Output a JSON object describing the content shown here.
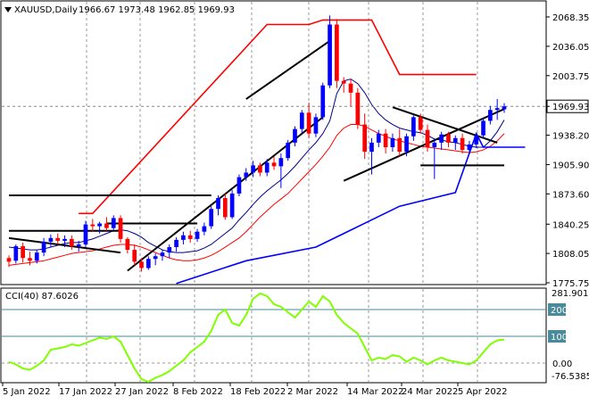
{
  "header": {
    "symbol_label": "XAUUSD,Daily",
    "ohlc": "1966.67 1973.48 1962.85 1969.93"
  },
  "indicator": {
    "label": "CCI(40) 87.6026",
    "scale_max": "281.9018",
    "scale_min": "-76.5385",
    "levels": [
      "200",
      "100",
      "0.00"
    ],
    "level_values": [
      200,
      100,
      0
    ]
  },
  "price_axis": {
    "ticks": [
      "2068.35",
      "2036.05",
      "2003.75",
      "1969.93",
      "1938.20",
      "1905.90",
      "1873.60",
      "1840.25",
      "1808.05",
      "1775.75"
    ],
    "tick_values": [
      2068.35,
      2036.05,
      2003.75,
      1969.93,
      1938.2,
      1905.9,
      1873.6,
      1840.25,
      1808.05,
      1775.75
    ],
    "current_price": "1969.93",
    "current_value": 1969.93
  },
  "time_axis": {
    "labels": [
      "5 Jan 2022",
      "17 Jan 2022",
      "27 Jan 2022",
      "8 Feb 2022",
      "18 Feb 2022",
      "2 Mar 2022",
      "14 Mar 2022",
      "24 Mar 2022",
      "5 Apr 2022"
    ]
  },
  "colors": {
    "up_candle": "#0000ff",
    "down_candle": "#ff0000",
    "ma_short": "#00008b",
    "ma_long": "#ff0000",
    "support": "#0000ff",
    "resistance": "#ff0000",
    "cci": "#7fff00",
    "trend_lines": "#000000",
    "level_lines": "#4a8a9a"
  },
  "chart_data": {
    "type": "candlestick",
    "ohlc": [
      [
        1803,
        1806,
        1793,
        1799
      ],
      [
        1800,
        1818,
        1797,
        1816
      ],
      [
        1816,
        1820,
        1798,
        1803
      ],
      [
        1803,
        1810,
        1795,
        1800
      ],
      [
        1800,
        1812,
        1797,
        1809
      ],
      [
        1809,
        1825,
        1805,
        1821
      ],
      [
        1821,
        1829,
        1815,
        1825
      ],
      [
        1825,
        1830,
        1818,
        1822
      ],
      [
        1822,
        1828,
        1815,
        1824
      ],
      [
        1824,
        1828,
        1812,
        1816
      ],
      [
        1816,
        1822,
        1810,
        1818
      ],
      [
        1818,
        1844,
        1815,
        1840
      ],
      [
        1840,
        1846,
        1832,
        1838
      ],
      [
        1838,
        1843,
        1830,
        1841
      ],
      [
        1841,
        1848,
        1833,
        1836
      ],
      [
        1836,
        1850,
        1834,
        1847
      ],
      [
        1847,
        1850,
        1820,
        1824
      ],
      [
        1824,
        1826,
        1808,
        1812
      ],
      [
        1812,
        1818,
        1795,
        1799
      ],
      [
        1799,
        1803,
        1788,
        1792
      ],
      [
        1792,
        1805,
        1790,
        1802
      ],
      [
        1802,
        1808,
        1795,
        1805
      ],
      [
        1805,
        1812,
        1800,
        1809
      ],
      [
        1809,
        1818,
        1803,
        1815
      ],
      [
        1815,
        1826,
        1810,
        1823
      ],
      [
        1823,
        1832,
        1818,
        1828
      ],
      [
        1828,
        1833,
        1820,
        1824
      ],
      [
        1824,
        1835,
        1821,
        1832
      ],
      [
        1832,
        1842,
        1828,
        1838
      ],
      [
        1838,
        1860,
        1835,
        1857
      ],
      [
        1857,
        1872,
        1850,
        1869
      ],
      [
        1869,
        1874,
        1845,
        1848
      ],
      [
        1848,
        1878,
        1846,
        1874
      ],
      [
        1874,
        1895,
        1871,
        1892
      ],
      [
        1892,
        1902,
        1888,
        1897
      ],
      [
        1897,
        1910,
        1892,
        1905
      ],
      [
        1905,
        1908,
        1893,
        1897
      ],
      [
        1897,
        1912,
        1893,
        1908
      ],
      [
        1908,
        1915,
        1900,
        1904
      ],
      [
        1904,
        1918,
        1880,
        1913
      ],
      [
        1913,
        1933,
        1910,
        1930
      ],
      [
        1930,
        1948,
        1926,
        1945
      ],
      [
        1945,
        1966,
        1940,
        1963
      ],
      [
        1963,
        1974,
        1935,
        1940
      ],
      [
        1940,
        1962,
        1936,
        1958
      ],
      [
        1958,
        1996,
        1955,
        1993
      ],
      [
        1993,
        2070,
        1990,
        2060
      ],
      [
        2060,
        2066,
        1990,
        1998
      ],
      [
        1998,
        2002,
        1985,
        1995
      ],
      [
        1995,
        2000,
        1970,
        1985
      ],
      [
        1985,
        1990,
        1945,
        1950
      ],
      [
        1950,
        1962,
        1912,
        1920
      ],
      [
        1920,
        1935,
        1895,
        1930
      ],
      [
        1930,
        1944,
        1925,
        1940
      ],
      [
        1940,
        1945,
        1918,
        1925
      ],
      [
        1925,
        1940,
        1920,
        1935
      ],
      [
        1935,
        1945,
        1915,
        1920
      ],
      [
        1920,
        1940,
        1915,
        1937
      ],
      [
        1937,
        1960,
        1932,
        1958
      ],
      [
        1958,
        1962,
        1940,
        1944
      ],
      [
        1944,
        1950,
        1920,
        1925
      ],
      [
        1925,
        1934,
        1890,
        1930
      ],
      [
        1930,
        1942,
        1922,
        1939
      ],
      [
        1939,
        1942,
        1925,
        1930
      ],
      [
        1930,
        1938,
        1922,
        1935
      ],
      [
        1935,
        1940,
        1918,
        1922
      ],
      [
        1922,
        1932,
        1918,
        1928
      ],
      [
        1928,
        1940,
        1924,
        1938
      ],
      [
        1938,
        1957,
        1935,
        1954
      ],
      [
        1954,
        1970,
        1950,
        1966
      ],
      [
        1966,
        1978,
        1955,
        1968
      ],
      [
        1966.67,
        1973.48,
        1962.85,
        1969.93
      ]
    ],
    "ma_short": [
      1815,
      1814,
      1813,
      1812,
      1812,
      1813,
      1815,
      1817,
      1819,
      1820,
      1820,
      1822,
      1824,
      1827,
      1830,
      1833,
      1834,
      1833,
      1830,
      1826,
      1820,
      1816,
      1812,
      1810,
      1809,
      1809,
      1810,
      1811,
      1814,
      1818,
      1824,
      1830,
      1836,
      1845,
      1853,
      1862,
      1870,
      1877,
      1883,
      1889,
      1896,
      1904,
      1913,
      1922,
      1930,
      1940,
      1954,
      1984,
      1998,
      2000,
      1995,
      1985,
      1972,
      1962,
      1955,
      1950,
      1946,
      1944,
      1942,
      1941,
      1938,
      1934,
      1933,
      1931,
      1930,
      1928,
      1926,
      1925,
      1925,
      1932,
      1942,
      1955
    ],
    "ma_long": [
      1795,
      1796,
      1797,
      1798,
      1799,
      1800,
      1802,
      1804,
      1806,
      1808,
      1809,
      1810,
      1811,
      1813,
      1815,
      1817,
      1818,
      1818,
      1817,
      1815,
      1812,
      1809,
      1806,
      1803,
      1801,
      1800,
      1800,
      1801,
      1803,
      1806,
      1810,
      1815,
      1820,
      1825,
      1832,
      1840,
      1848,
      1855,
      1862,
      1868,
      1874,
      1882,
      1890,
      1898,
      1906,
      1915,
      1925,
      1938,
      1946,
      1950,
      1950,
      1948,
      1944,
      1940,
      1937,
      1934,
      1932,
      1930,
      1928,
      1926,
      1925,
      1924,
      1923,
      1922,
      1921,
      1920,
      1919,
      1920,
      1922,
      1926,
      1932,
      1940
    ],
    "support_blue": [
      [
        24,
        1775
      ],
      [
        34,
        1800
      ],
      [
        44,
        1815
      ],
      [
        56,
        1860
      ],
      [
        64,
        1875
      ],
      [
        67,
        1940
      ],
      [
        68,
        1925
      ],
      [
        74,
        1925
      ]
    ],
    "resistance_red": [
      [
        10,
        1852
      ],
      [
        12,
        1852
      ],
      [
        37,
        2060
      ],
      [
        43,
        2060
      ],
      [
        45,
        2065
      ],
      [
        52,
        2065
      ],
      [
        56,
        2005
      ],
      [
        67,
        2005
      ]
    ],
    "trend_lines": [
      [
        [
          0,
          1825
        ],
        [
          16,
          1809
        ]
      ],
      [
        [
          17,
          1789
        ],
        [
          45,
          1958
        ]
      ],
      [
        [
          34,
          1978
        ],
        [
          46,
          2042
        ]
      ],
      [
        [
          48,
          1888
        ],
        [
          71,
          1967
        ]
      ],
      [
        [
          59,
          1905
        ],
        [
          71,
          1905
        ]
      ],
      [
        [
          55,
          1969
        ],
        [
          70,
          1930
        ]
      ],
      [
        [
          0,
          1833
        ],
        [
          16,
          1833
        ]
      ],
      [
        [
          14,
          1841
        ],
        [
          27,
          1841
        ]
      ],
      [
        [
          0,
          1872
        ],
        [
          29,
          1872
        ]
      ]
    ],
    "cci": [
      5,
      -5,
      -20,
      -25,
      -10,
      10,
      50,
      55,
      60,
      70,
      65,
      75,
      85,
      95,
      90,
      100,
      80,
      30,
      -20,
      -60,
      -75,
      -55,
      -45,
      -30,
      -10,
      10,
      40,
      60,
      80,
      120,
      180,
      200,
      150,
      140,
      180,
      240,
      260,
      250,
      220,
      210,
      190,
      170,
      200,
      230,
      210,
      250,
      230,
      180,
      150,
      130,
      110,
      60,
      10,
      20,
      15,
      30,
      25,
      5,
      20,
      10,
      -5,
      10,
      20,
      10,
      5,
      0,
      -5,
      10,
      40,
      70,
      85,
      88
    ]
  }
}
